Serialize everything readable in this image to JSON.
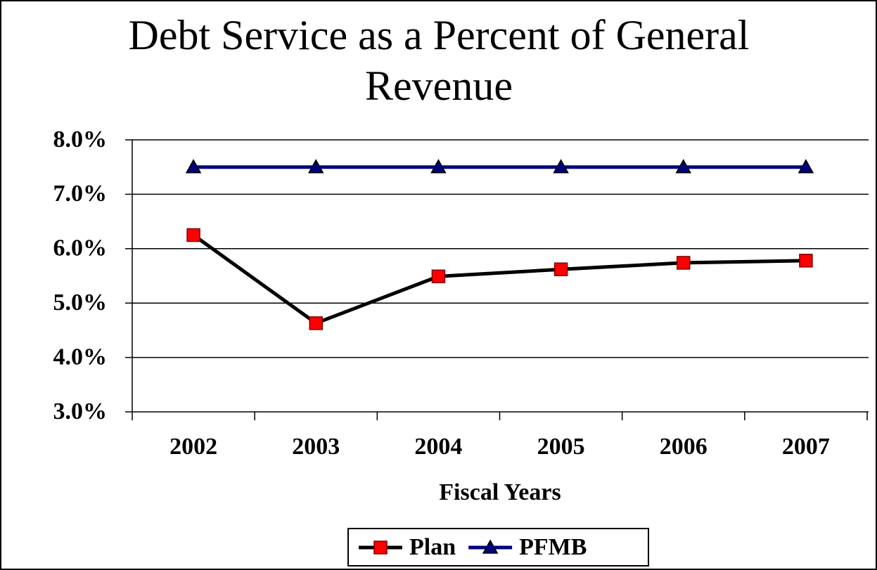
{
  "chart_data": {
    "type": "line",
    "title": "Debt Service as a Percent of General Revenue",
    "xlabel": "Fiscal Years",
    "categories": [
      "2002",
      "2003",
      "2004",
      "2005",
      "2006",
      "2007"
    ],
    "series": [
      {
        "name": "Plan",
        "color": "#000000",
        "marker": "square",
        "marker_color": "#ff0000",
        "values": [
          6.25,
          4.63,
          5.49,
          5.62,
          5.74,
          5.78
        ]
      },
      {
        "name": "PFMB",
        "color": "#000080",
        "marker": "triangle",
        "marker_color": "#000080",
        "values": [
          7.5,
          7.5,
          7.5,
          7.5,
          7.5,
          7.5
        ]
      }
    ],
    "ylim": [
      3,
      8
    ],
    "yticks": [
      {
        "value": 3,
        "label": "3.0%"
      },
      {
        "value": 4,
        "label": "4.0%"
      },
      {
        "value": 5,
        "label": "5.0%"
      },
      {
        "value": 6,
        "label": "6.0%"
      },
      {
        "value": 7,
        "label": "7.0%"
      },
      {
        "value": 8,
        "label": "8.0%"
      }
    ],
    "grid": true,
    "legend": "bottom"
  }
}
